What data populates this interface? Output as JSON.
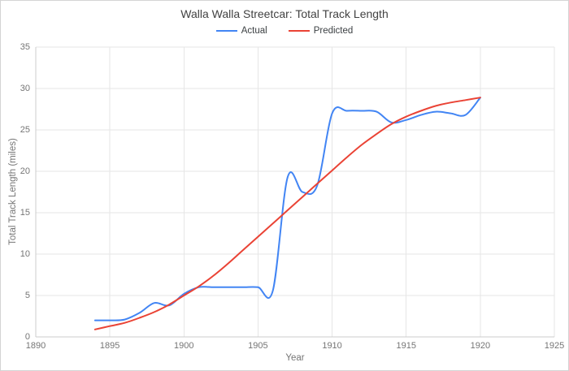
{
  "chart": {
    "title": "Walla Walla Streetcar: Total Track Length",
    "legend_entries": [
      "Actual",
      "Predicted"
    ]
  },
  "chart_data": {
    "type": "line",
    "title": "Walla Walla Streetcar: Total Track Length",
    "xlabel": "Year",
    "ylabel": "Total Track Length (miles)",
    "xlim": [
      1890,
      1925
    ],
    "ylim": [
      0,
      35
    ],
    "x_ticks": [
      1890,
      1895,
      1900,
      1905,
      1910,
      1915,
      1920,
      1925
    ],
    "y_ticks": [
      0,
      5,
      10,
      15,
      20,
      25,
      30,
      35
    ],
    "grid": true,
    "legend_position": "top",
    "curve": "smooth",
    "x": [
      1894,
      1895,
      1896,
      1897,
      1898,
      1899,
      1900,
      1901,
      1902,
      1903,
      1904,
      1905,
      1906,
      1907,
      1908,
      1909,
      1910,
      1911,
      1912,
      1913,
      1914,
      1915,
      1916,
      1917,
      1918,
      1919,
      1920
    ],
    "series": [
      {
        "name": "Actual",
        "color": "#4285f4",
        "values": [
          2.0,
          2.0,
          2.1,
          2.9,
          4.1,
          3.8,
          5.2,
          6.0,
          6.0,
          6.0,
          6.0,
          6.0,
          5.6,
          19.3,
          17.5,
          18.3,
          27.0,
          27.3,
          27.3,
          27.2,
          25.9,
          26.2,
          26.8,
          27.2,
          27.0,
          26.8,
          28.9
        ]
      },
      {
        "name": "Predicted",
        "color": "#ea4335",
        "values": [
          0.9,
          1.3,
          1.7,
          2.3,
          3.0,
          3.9,
          5.0,
          6.1,
          7.4,
          8.9,
          10.5,
          12.1,
          13.7,
          15.3,
          16.9,
          18.5,
          20.1,
          21.7,
          23.2,
          24.5,
          25.7,
          26.6,
          27.3,
          27.9,
          28.3,
          28.6,
          28.9
        ]
      }
    ]
  }
}
